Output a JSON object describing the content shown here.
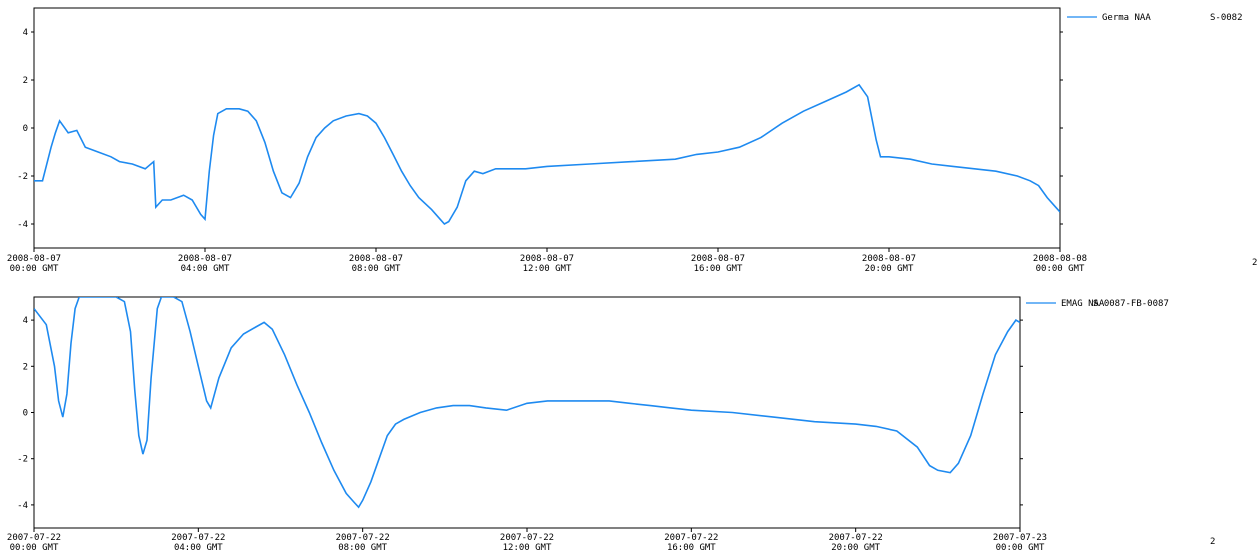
{
  "chart_data": [
    {
      "type": "line",
      "legend": {
        "label": "Germa NAA",
        "code": "S-0082",
        "placement": "top-right"
      },
      "series_color": "#1e8af0",
      "ylim": [
        -5,
        5
      ],
      "yticks": [
        -4,
        -2,
        0,
        2,
        4
      ],
      "xlim": [
        0,
        24
      ],
      "x_ticks": [
        {
          "x": 0,
          "date": "2008-08-07",
          "time": "00:00 GMT"
        },
        {
          "x": 4,
          "date": "2008-08-07",
          "time": "04:00 GMT"
        },
        {
          "x": 8,
          "date": "2008-08-07",
          "time": "08:00 GMT"
        },
        {
          "x": 12,
          "date": "2008-08-07",
          "time": "12:00 GMT"
        },
        {
          "x": 16,
          "date": "2008-08-07",
          "time": "16:00 GMT"
        },
        {
          "x": 20,
          "date": "2008-08-07",
          "time": "20:00 GMT"
        },
        {
          "x": 24,
          "date": "2008-08-08",
          "time": "00:00 GMT"
        }
      ],
      "right_edge_text": "2",
      "points": [
        [
          0,
          -2.2
        ],
        [
          0.2,
          -2.2
        ],
        [
          0.4,
          -0.8
        ],
        [
          0.5,
          -0.2
        ],
        [
          0.6,
          0.3
        ],
        [
          0.8,
          -0.2
        ],
        [
          1.0,
          -0.1
        ],
        [
          1.2,
          -0.8
        ],
        [
          1.5,
          -1.0
        ],
        [
          1.8,
          -1.2
        ],
        [
          2.0,
          -1.4
        ],
        [
          2.3,
          -1.5
        ],
        [
          2.6,
          -1.7
        ],
        [
          2.8,
          -1.4
        ],
        [
          2.85,
          -3.3
        ],
        [
          3.0,
          -3.0
        ],
        [
          3.2,
          -3.0
        ],
        [
          3.5,
          -2.8
        ],
        [
          3.7,
          -3.0
        ],
        [
          3.9,
          -3.6
        ],
        [
          4.0,
          -3.8
        ],
        [
          4.1,
          -1.8
        ],
        [
          4.2,
          -0.3
        ],
        [
          4.3,
          0.6
        ],
        [
          4.5,
          0.8
        ],
        [
          4.8,
          0.8
        ],
        [
          5.0,
          0.7
        ],
        [
          5.2,
          0.3
        ],
        [
          5.4,
          -0.6
        ],
        [
          5.6,
          -1.8
        ],
        [
          5.8,
          -2.7
        ],
        [
          6.0,
          -2.9
        ],
        [
          6.2,
          -2.3
        ],
        [
          6.4,
          -1.2
        ],
        [
          6.6,
          -0.4
        ],
        [
          6.8,
          0.0
        ],
        [
          7.0,
          0.3
        ],
        [
          7.3,
          0.5
        ],
        [
          7.6,
          0.6
        ],
        [
          7.8,
          0.5
        ],
        [
          8.0,
          0.2
        ],
        [
          8.2,
          -0.4
        ],
        [
          8.4,
          -1.1
        ],
        [
          8.6,
          -1.8
        ],
        [
          8.8,
          -2.4
        ],
        [
          9.0,
          -2.9
        ],
        [
          9.3,
          -3.4
        ],
        [
          9.5,
          -3.8
        ],
        [
          9.6,
          -4.0
        ],
        [
          9.7,
          -3.9
        ],
        [
          9.9,
          -3.3
        ],
        [
          10.1,
          -2.2
        ],
        [
          10.3,
          -1.8
        ],
        [
          10.5,
          -1.9
        ],
        [
          10.8,
          -1.7
        ],
        [
          11.5,
          -1.7
        ],
        [
          12.0,
          -1.6
        ],
        [
          13.0,
          -1.5
        ],
        [
          14.0,
          -1.4
        ],
        [
          15.0,
          -1.3
        ],
        [
          15.5,
          -1.1
        ],
        [
          16.0,
          -1.0
        ],
        [
          16.5,
          -0.8
        ],
        [
          17.0,
          -0.4
        ],
        [
          17.5,
          0.2
        ],
        [
          18.0,
          0.7
        ],
        [
          18.5,
          1.1
        ],
        [
          19.0,
          1.5
        ],
        [
          19.3,
          1.8
        ],
        [
          19.5,
          1.3
        ],
        [
          19.7,
          -0.5
        ],
        [
          19.8,
          -1.2
        ],
        [
          20.0,
          -1.2
        ],
        [
          20.5,
          -1.3
        ],
        [
          21.0,
          -1.5
        ],
        [
          21.5,
          -1.6
        ],
        [
          22.0,
          -1.7
        ],
        [
          22.5,
          -1.8
        ],
        [
          23.0,
          -2.0
        ],
        [
          23.3,
          -2.2
        ],
        [
          23.5,
          -2.4
        ],
        [
          23.7,
          -2.9
        ],
        [
          23.9,
          -3.3
        ],
        [
          24.0,
          -3.5
        ]
      ]
    },
    {
      "type": "line",
      "legend": {
        "label": "EMAG NAA",
        "code": "S-0087-FB-0087",
        "placement": "top-right"
      },
      "series_color": "#1e8af0",
      "ylim": [
        -5,
        5
      ],
      "yticks": [
        -4,
        -2,
        0,
        2,
        4
      ],
      "xlim": [
        0,
        24
      ],
      "x_ticks": [
        {
          "x": 0,
          "date": "2007-07-22",
          "time": "00:00 GMT"
        },
        {
          "x": 4,
          "date": "2007-07-22",
          "time": "04:00 GMT"
        },
        {
          "x": 8,
          "date": "2007-07-22",
          "time": "08:00 GMT"
        },
        {
          "x": 12,
          "date": "2007-07-22",
          "time": "12:00 GMT"
        },
        {
          "x": 16,
          "date": "2007-07-22",
          "time": "16:00 GMT"
        },
        {
          "x": 20,
          "date": "2007-07-22",
          "time": "20:00 GMT"
        },
        {
          "x": 24,
          "date": "2007-07-23",
          "time": "00:00 GMT"
        }
      ],
      "right_edge_text": "2",
      "points": [
        [
          0,
          4.5
        ],
        [
          0.3,
          3.8
        ],
        [
          0.5,
          2.0
        ],
        [
          0.6,
          0.5
        ],
        [
          0.7,
          -0.2
        ],
        [
          0.8,
          0.8
        ],
        [
          0.9,
          3.0
        ],
        [
          1.0,
          4.5
        ],
        [
          1.1,
          5.0
        ],
        [
          1.5,
          5.0
        ],
        [
          2.0,
          5.0
        ],
        [
          2.2,
          4.8
        ],
        [
          2.35,
          3.5
        ],
        [
          2.45,
          1.0
        ],
        [
          2.55,
          -1.0
        ],
        [
          2.65,
          -1.8
        ],
        [
          2.75,
          -1.2
        ],
        [
          2.85,
          1.5
        ],
        [
          3.0,
          4.5
        ],
        [
          3.1,
          5.0
        ],
        [
          3.4,
          5.0
        ],
        [
          3.6,
          4.8
        ],
        [
          3.8,
          3.5
        ],
        [
          4.0,
          2.0
        ],
        [
          4.2,
          0.5
        ],
        [
          4.3,
          0.2
        ],
        [
          4.5,
          1.5
        ],
        [
          4.8,
          2.8
        ],
        [
          5.1,
          3.4
        ],
        [
          5.4,
          3.7
        ],
        [
          5.6,
          3.9
        ],
        [
          5.8,
          3.6
        ],
        [
          6.1,
          2.5
        ],
        [
          6.4,
          1.2
        ],
        [
          6.7,
          0.0
        ],
        [
          7.0,
          -1.3
        ],
        [
          7.3,
          -2.5
        ],
        [
          7.6,
          -3.5
        ],
        [
          7.8,
          -3.9
        ],
        [
          7.9,
          -4.1
        ],
        [
          8.0,
          -3.8
        ],
        [
          8.2,
          -3.0
        ],
        [
          8.4,
          -2.0
        ],
        [
          8.6,
          -1.0
        ],
        [
          8.8,
          -0.5
        ],
        [
          9.0,
          -0.3
        ],
        [
          9.4,
          0.0
        ],
        [
          9.8,
          0.2
        ],
        [
          10.2,
          0.3
        ],
        [
          10.6,
          0.3
        ],
        [
          11.0,
          0.2
        ],
        [
          11.5,
          0.1
        ],
        [
          12.0,
          0.4
        ],
        [
          12.5,
          0.5
        ],
        [
          13.0,
          0.5
        ],
        [
          14.0,
          0.5
        ],
        [
          14.5,
          0.4
        ],
        [
          15.0,
          0.3
        ],
        [
          15.5,
          0.2
        ],
        [
          16.0,
          0.1
        ],
        [
          17.0,
          0.0
        ],
        [
          18.0,
          -0.2
        ],
        [
          19.0,
          -0.4
        ],
        [
          20.0,
          -0.5
        ],
        [
          20.5,
          -0.6
        ],
        [
          21.0,
          -0.8
        ],
        [
          21.5,
          -1.5
        ],
        [
          21.8,
          -2.3
        ],
        [
          22.0,
          -2.5
        ],
        [
          22.3,
          -2.6
        ],
        [
          22.5,
          -2.2
        ],
        [
          22.8,
          -1.0
        ],
        [
          23.1,
          0.8
        ],
        [
          23.4,
          2.5
        ],
        [
          23.7,
          3.5
        ],
        [
          23.9,
          4.0
        ],
        [
          24.0,
          3.9
        ]
      ]
    }
  ]
}
